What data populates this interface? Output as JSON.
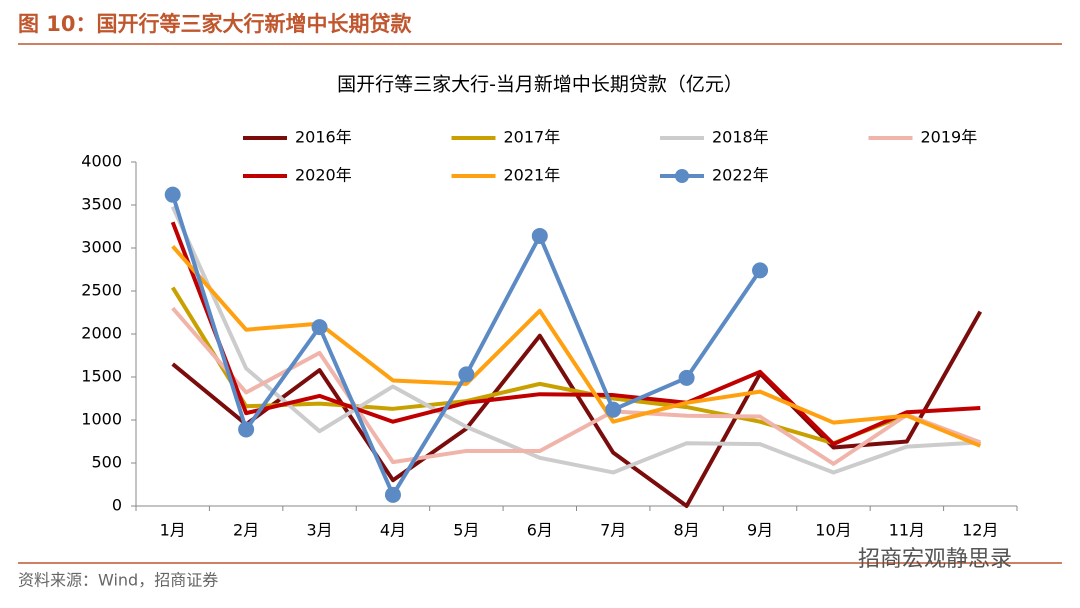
{
  "header": {
    "title": "图 10：国开行等三家大行新增中长期贷款"
  },
  "footer": {
    "source": "资料来源：Wind，招商证券",
    "watermark": "招商宏观静思录"
  },
  "chart_data": {
    "type": "line",
    "title": "国开行等三家大行-当月新增中长期贷款（亿元）",
    "categories": [
      "1月",
      "2月",
      "3月",
      "4月",
      "5月",
      "6月",
      "7月",
      "8月",
      "9月",
      "10月",
      "11月",
      "12月"
    ],
    "ylim": [
      0,
      4000
    ],
    "yticks": [
      0,
      500,
      1000,
      1500,
      2000,
      2500,
      3000,
      3500,
      4000
    ],
    "grid": false,
    "legend": "top",
    "series": [
      {
        "name": "2016年",
        "color": "#7b0c0c",
        "values": [
          1650,
          950,
          1580,
          300,
          900,
          1980,
          620,
          0,
          1540,
          680,
          750,
          2260
        ]
      },
      {
        "name": "2017年",
        "color": "#c8a000",
        "values": [
          2540,
          1160,
          1190,
          1130,
          1220,
          1420,
          1250,
          1150,
          980,
          730,
          1060,
          720
        ]
      },
      {
        "name": "2018年",
        "color": "#cccccc",
        "values": [
          3480,
          1600,
          870,
          1390,
          920,
          560,
          390,
          730,
          720,
          390,
          690,
          740
        ]
      },
      {
        "name": "2019年",
        "color": "#f0b4aa",
        "values": [
          2300,
          1320,
          1780,
          510,
          640,
          640,
          1100,
          1050,
          1040,
          490,
          1060,
          740
        ]
      },
      {
        "name": "2020年",
        "color": "#c00000",
        "values": [
          3300,
          1080,
          1280,
          980,
          1200,
          1300,
          1290,
          1200,
          1560,
          720,
          1090,
          1140
        ]
      },
      {
        "name": "2021年",
        "color": "#ffa010",
        "values": [
          3020,
          2050,
          2120,
          1460,
          1420,
          2270,
          980,
          1200,
          1330,
          970,
          1050,
          700
        ]
      },
      {
        "name": "2022年",
        "color": "#5b8ac4",
        "marker": "circle",
        "values": [
          3620,
          890,
          2080,
          130,
          1530,
          3140,
          1120,
          1490,
          2740,
          null,
          null,
          null
        ]
      }
    ]
  }
}
